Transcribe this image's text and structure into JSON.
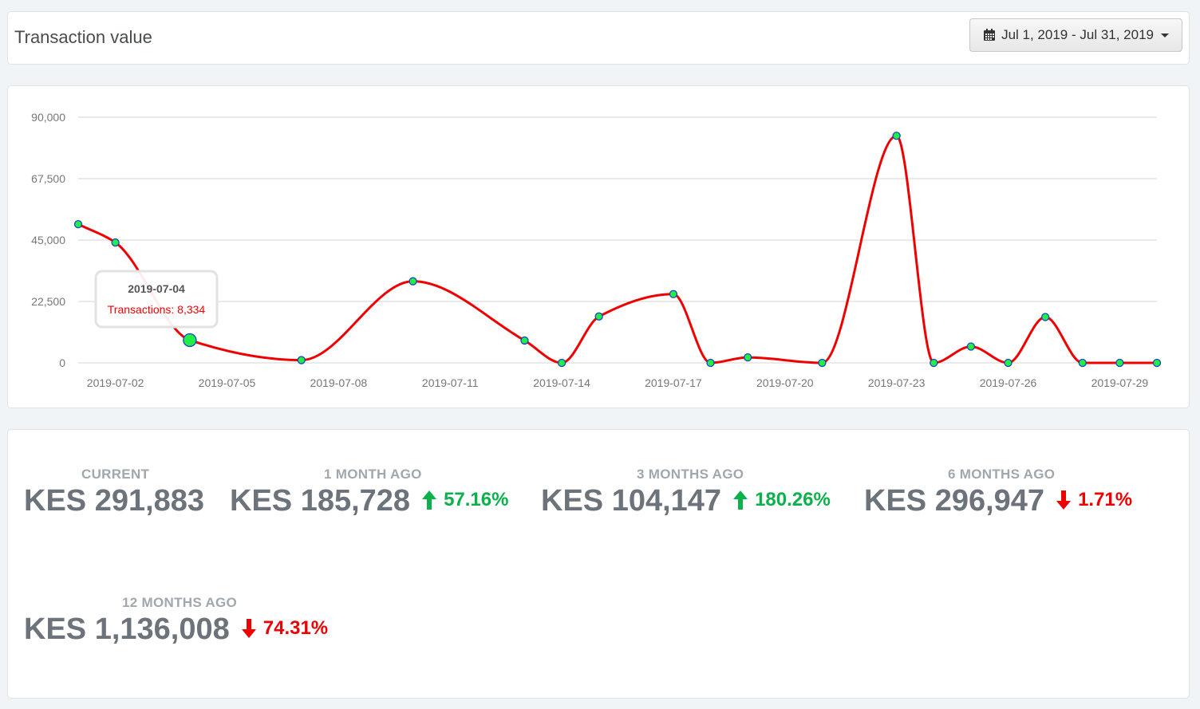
{
  "header": {
    "title": "Transaction value",
    "date_range_label": "Jul 1, 2019 - Jul 31, 2019",
    "date_range_icons": [
      "calendar-icon",
      "caret-down-icon"
    ]
  },
  "chart_data": {
    "type": "line",
    "x": [
      "2019-07-01",
      "2019-07-02",
      "2019-07-04",
      "2019-07-07",
      "2019-07-10",
      "2019-07-13",
      "2019-07-14",
      "2019-07-15",
      "2019-07-17",
      "2019-07-18",
      "2019-07-19",
      "2019-07-21",
      "2019-07-23",
      "2019-07-24",
      "2019-07-25",
      "2019-07-26",
      "2019-07-27",
      "2019-07-28",
      "2019-07-29",
      "2019-07-30"
    ],
    "series": [
      {
        "values": [
          50800,
          44100,
          8334,
          1000,
          29900,
          8200,
          0,
          17000,
          25200,
          0,
          2000,
          0,
          83200,
          0,
          6000,
          0,
          16800,
          0,
          0,
          0
        ]
      }
    ],
    "x_ticks": [
      "2019-07-02",
      "2019-07-05",
      "2019-07-08",
      "2019-07-11",
      "2019-07-14",
      "2019-07-17",
      "2019-07-20",
      "2019-07-23",
      "2019-07-26",
      "2019-07-29"
    ],
    "y_ticks": [
      "0",
      "22,500",
      "45,000",
      "67,500",
      "90,000"
    ],
    "ylim": [
      0,
      90000
    ],
    "grid": true,
    "line_color": "#ee0000",
    "marker_color": "#22ee44",
    "tooltip": {
      "date": "2019-07-04",
      "text": "Transactions: 8,334",
      "point_index": 2
    }
  },
  "stats": [
    {
      "label": "CURRENT",
      "value": "KES 291,883"
    },
    {
      "label": "1 MONTH AGO",
      "value": "KES 185,728",
      "change": "57.16%",
      "direction": "up"
    },
    {
      "label": "3 MONTHS AGO",
      "value": "KES 104,147",
      "change": "180.26%",
      "direction": "up"
    },
    {
      "label": "6 MONTHS AGO",
      "value": "KES 296,947",
      "change": "1.71%",
      "direction": "down"
    },
    {
      "label": "12 MONTHS AGO",
      "value": "KES 1,136,008",
      "change": "74.31%",
      "direction": "down"
    }
  ],
  "colors": {
    "up": "#0bb14a",
    "down": "#ee0000"
  }
}
